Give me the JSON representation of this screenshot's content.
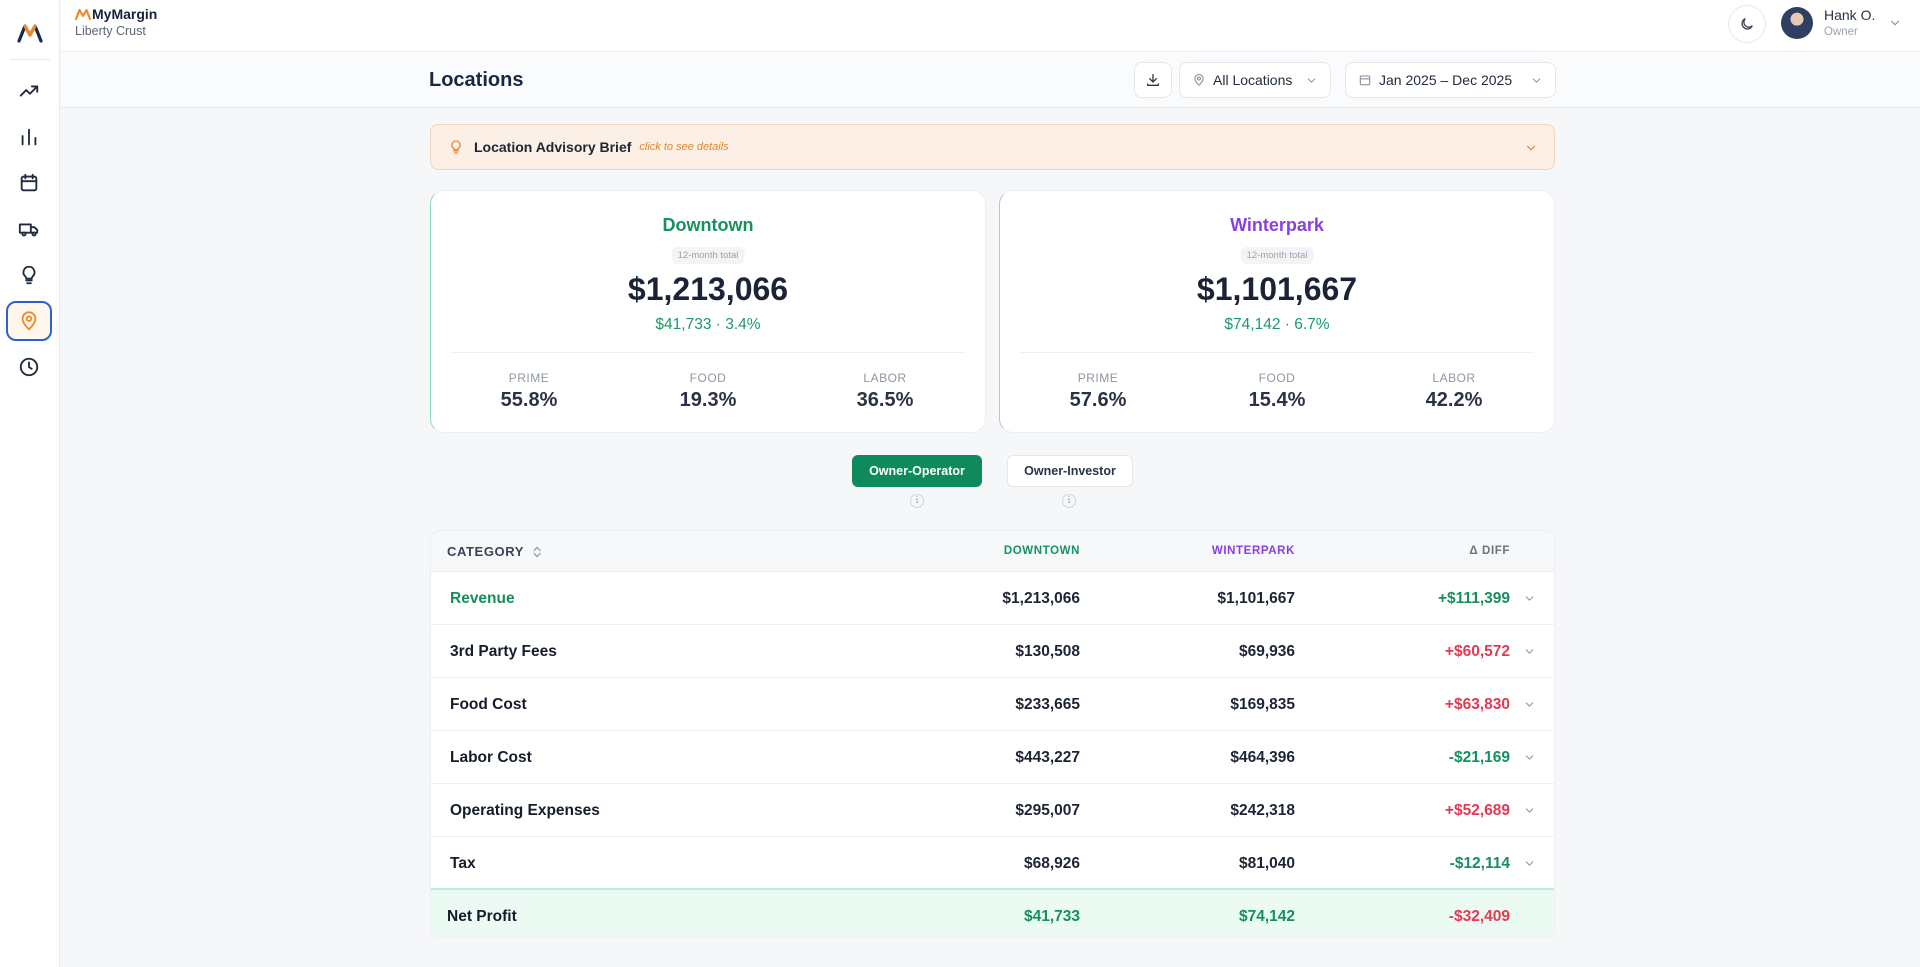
{
  "app": {
    "brand_name": "MyMargin",
    "restaurant": "Liberty Crust"
  },
  "sidebar": {
    "items": [
      {
        "icon": "trending-up-icon",
        "active": false
      },
      {
        "icon": "bar-chart-icon",
        "active": false
      },
      {
        "icon": "calendar-icon",
        "active": false
      },
      {
        "icon": "truck-icon",
        "active": false
      },
      {
        "icon": "lightbulb-icon",
        "active": false
      },
      {
        "icon": "map-pin-icon",
        "active": true
      },
      {
        "icon": "clock-icon",
        "active": false
      }
    ]
  },
  "user": {
    "name": "Hank O.",
    "role": "Owner"
  },
  "header": {
    "title": "Locations",
    "location_filter": "All Locations",
    "date_range": "Jan 2025 – Dec 2025"
  },
  "advisory": {
    "title": "Location Advisory Brief",
    "hint": "click to see details"
  },
  "locations": [
    {
      "name": "Downtown",
      "chip": "12-month total",
      "total": "$1,213,066",
      "profit_line": "$41,733 · 3.4%",
      "metrics": [
        {
          "label": "PRIME",
          "value": "55.8%"
        },
        {
          "label": "FOOD",
          "value": "19.3%"
        },
        {
          "label": "LABOR",
          "value": "36.5%"
        }
      ]
    },
    {
      "name": "Winterpark",
      "chip": "12-month total",
      "total": "$1,101,667",
      "profit_line": "$74,142 · 6.7%",
      "metrics": [
        {
          "label": "PRIME",
          "value": "57.6%"
        },
        {
          "label": "FOOD",
          "value": "15.4%"
        },
        {
          "label": "LABOR",
          "value": "42.2%"
        }
      ]
    }
  ],
  "view_toggle": {
    "active": "Owner-Operator",
    "inactive": "Owner-Investor",
    "info_glyph": "i"
  },
  "table": {
    "headers": {
      "category": "CATEGORY",
      "downtown": "DOWNTOWN",
      "winterpark": "WINTERPARK",
      "diff": "Δ DIFF"
    },
    "rows": [
      {
        "name": "Revenue",
        "downtown": "$1,213,066",
        "winterpark": "$1,101,667",
        "diff": "+$111,399",
        "diff_sign": "pos"
      },
      {
        "name": "3rd Party Fees",
        "downtown": "$130,508",
        "winterpark": "$69,936",
        "diff": "+$60,572",
        "diff_sign": "neg"
      },
      {
        "name": "Food Cost",
        "downtown": "$233,665",
        "winterpark": "$169,835",
        "diff": "+$63,830",
        "diff_sign": "neg"
      },
      {
        "name": "Labor Cost",
        "downtown": "$443,227",
        "winterpark": "$464,396",
        "diff": "-$21,169",
        "diff_sign": "pos"
      },
      {
        "name": "Operating Expenses",
        "downtown": "$295,007",
        "winterpark": "$242,318",
        "diff": "+$52,689",
        "diff_sign": "neg"
      },
      {
        "name": "Tax",
        "downtown": "$68,926",
        "winterpark": "$81,040",
        "diff": "-$12,114",
        "diff_sign": "pos"
      }
    ],
    "net": {
      "name": "Net Profit",
      "downtown": "$41,733",
      "winterpark": "$74,142",
      "diff": "-$32,409",
      "diff_sign": "neg"
    }
  },
  "colors": {
    "downtown": "#17925f",
    "winterpark": "#8a3fe0",
    "positive": "#178f5d",
    "negative": "#e23a52",
    "accent_orange": "#f08a24",
    "active_outline": "#2a63c9"
  }
}
